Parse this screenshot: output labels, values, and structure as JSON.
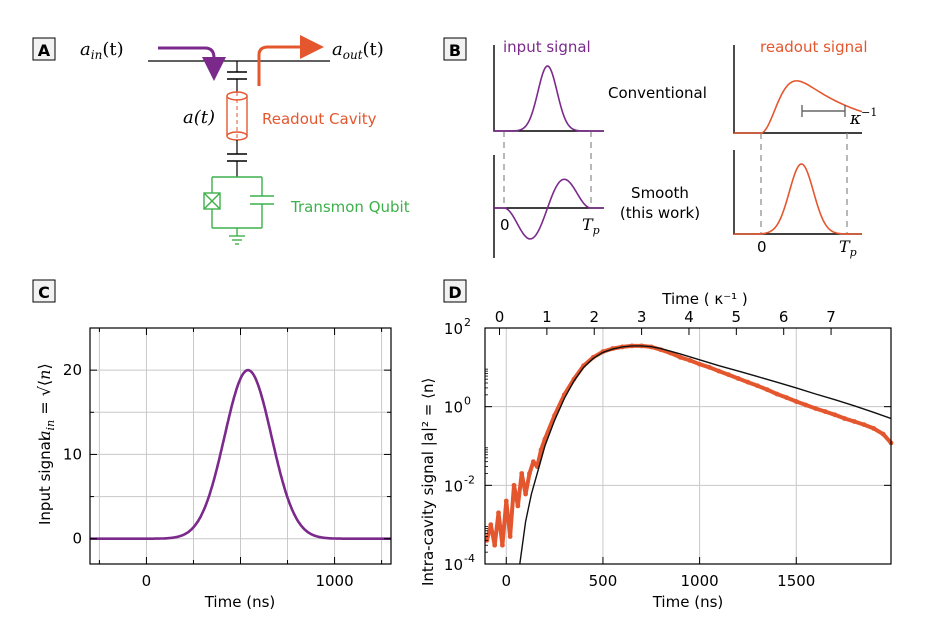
{
  "colors": {
    "purple": "#7b2a8c",
    "orange": "#e4572e",
    "green": "#3db04b",
    "grid": "#c8c8c8",
    "axis": "#000000",
    "dash": "#888888",
    "fit": "#111111"
  },
  "panel_a": {
    "label": "A",
    "a_in": "a",
    "a_in_sub": "in",
    "a_in_arg": "(t)",
    "a_out": "a",
    "a_out_sub": "out",
    "a_out_arg": "(t)",
    "a_t": "a(t)",
    "readout_cavity": "Readout Cavity",
    "transmon_qubit": "Transmon Qubit"
  },
  "panel_b": {
    "label": "B",
    "input_title": "input signal",
    "readout_title": "readout signal",
    "conventional": "Conventional",
    "smooth_line1": "Smooth",
    "smooth_line2": "(this work)",
    "zero_left": "0",
    "tp_left": "T",
    "tp_sub": "p",
    "zero_right": "0",
    "tp_right": "T",
    "tp_right_sub": "p",
    "kappa": "κ",
    "kappa_exp": "−1"
  },
  "chart_data": [
    {
      "panel": "C",
      "type": "line",
      "label": "C",
      "xlabel": "Time (ns)",
      "ylabel_text": "Input signal",
      "ylabel_math": "a_in = √⟨n⟩",
      "xlim": [
        -300,
        1300
      ],
      "ylim": [
        -3,
        25
      ],
      "xticks": [
        0,
        1000
      ],
      "xtick_labels": [
        "0",
        "1000"
      ],
      "yticks": [
        0,
        10,
        20
      ],
      "ytick_labels": [
        "0",
        "10",
        "20"
      ],
      "grid": true,
      "series": [
        {
          "color": "#7b2a8c",
          "peak": 20,
          "center_ns": 540,
          "sigma_ns": 125
        }
      ]
    },
    {
      "panel": "D",
      "type": "line",
      "label": "D",
      "xlabel": "Time (ns)",
      "ylabel": "Intra-cavity signal |a|² = ⟨n⟩",
      "top_xlabel": "Time ( κ⁻¹ )",
      "xlim": [
        -110,
        1990
      ],
      "ylim_log10": [
        -4,
        2
      ],
      "yscale": "log",
      "xticks": [
        0,
        500,
        1000,
        1500
      ],
      "xtick_labels": [
        "0",
        "500",
        "1000",
        "1500"
      ],
      "top_ticks": [
        0,
        1,
        2,
        3,
        4,
        5,
        6,
        7
      ],
      "top_tick_labels": [
        "0",
        "1",
        "2",
        "3",
        "4",
        "5",
        "6",
        "7"
      ],
      "ytick_labels": [
        "10-4",
        "10-2",
        "100",
        "102"
      ],
      "ytick_exps": [
        -4,
        -2,
        0,
        2
      ],
      "grid": true,
      "series": [
        {
          "kind": "data",
          "color": "#e4572e",
          "x": [
            -100,
            -80,
            -60,
            -40,
            -20,
            0,
            20,
            40,
            60,
            80,
            100,
            120,
            140,
            160,
            180,
            200,
            250,
            300,
            350,
            400,
            450,
            500,
            550,
            600,
            650,
            700,
            750,
            800,
            850,
            900,
            950,
            1000,
            1050,
            1100,
            1150,
            1200,
            1250,
            1300,
            1350,
            1400,
            1450,
            1500,
            1550,
            1600,
            1650,
            1700,
            1750,
            1800,
            1850,
            1900,
            1950,
            1990
          ],
          "y": [
            0.0004,
            0.001,
            0.0003,
            0.002,
            0.0003,
            0.004,
            0.0005,
            0.01,
            0.003,
            0.02,
            0.006,
            0.02,
            0.04,
            0.03,
            0.08,
            0.15,
            0.6,
            2.0,
            5.0,
            11,
            18,
            25,
            30,
            33,
            35,
            35,
            33,
            28,
            23,
            18,
            15,
            12,
            10,
            8,
            6.5,
            5.2,
            4.2,
            3.4,
            2.7,
            2.1,
            1.7,
            1.35,
            1.1,
            0.9,
            0.75,
            0.62,
            0.5,
            0.42,
            0.35,
            0.28,
            0.2,
            0.12
          ]
        },
        {
          "kind": "fit",
          "color": "#111111",
          "x": [
            70,
            100,
            130,
            160,
            200,
            250,
            300,
            350,
            400,
            450,
            500,
            550,
            600,
            650,
            700,
            750,
            800,
            900,
            1000,
            1100,
            1200,
            1300,
            1400,
            1500,
            1600,
            1700,
            1800,
            1900,
            1990
          ],
          "y": [
            0.0001,
            0.0012,
            0.006,
            0.02,
            0.1,
            0.45,
            1.6,
            4.5,
            10,
            17,
            24,
            29,
            33,
            35,
            35,
            33.5,
            30,
            22,
            15.5,
            11,
            8,
            5.8,
            4.2,
            3.0,
            2.1,
            1.5,
            1.05,
            0.72,
            0.5
          ]
        }
      ]
    }
  ]
}
